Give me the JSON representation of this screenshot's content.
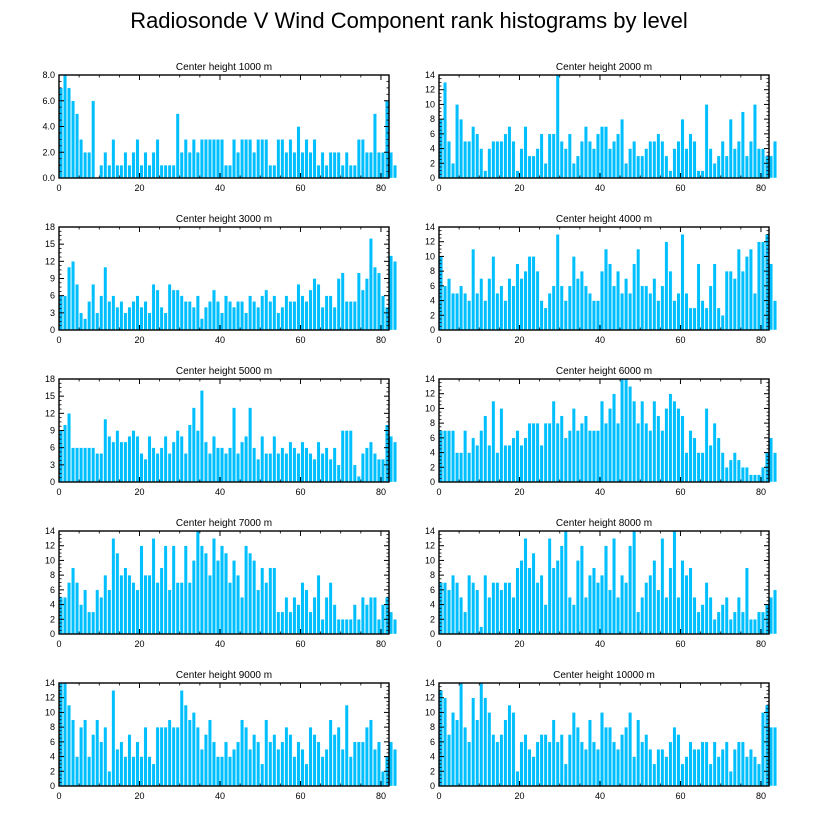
{
  "page": {
    "title": "Radiosonde V Wind Component rank histograms by level"
  },
  "colors": {
    "bar": "#00bfff",
    "barEdge": "#ffffff",
    "axis": "#000000",
    "text": "#000000"
  },
  "chart_data": [
    {
      "type": "bar",
      "title": "Center height 1000 m",
      "xlim": [
        0,
        82
      ],
      "ylim": [
        0,
        8
      ],
      "xticks": [
        {
          "v": 0,
          "label": "0"
        },
        {
          "v": 20,
          "label": "20"
        },
        {
          "v": 40,
          "label": "40"
        },
        {
          "v": 60,
          "label": "60"
        },
        {
          "v": 80,
          "label": "80"
        }
      ],
      "yticks": [
        {
          "v": 0,
          "label": "0.0"
        },
        {
          "v": 2,
          "label": "2.0"
        },
        {
          "v": 4,
          "label": "4.0"
        },
        {
          "v": 6,
          "label": "6.0"
        },
        {
          "v": 8,
          "label": "8.0"
        }
      ],
      "values": [
        7,
        8,
        7,
        6,
        5,
        3,
        2,
        2,
        6,
        0,
        1,
        2,
        1,
        3,
        1,
        1,
        2,
        1,
        2,
        3,
        1,
        2,
        1,
        2,
        3,
        1,
        1,
        1,
        1,
        5,
        2,
        3,
        2,
        3,
        2,
        3,
        3,
        3,
        3,
        3,
        3,
        1,
        1,
        3,
        2,
        3,
        3,
        3,
        2,
        3,
        3,
        3,
        1,
        1,
        3,
        3,
        2,
        3,
        2,
        4,
        2,
        3,
        2,
        3,
        1,
        2,
        1,
        2,
        2,
        2,
        1,
        2,
        1,
        1,
        3,
        3,
        2,
        2,
        5,
        2,
        2,
        6,
        2,
        1
      ]
    },
    {
      "type": "bar",
      "title": "Center height 2000 m",
      "xlim": [
        0,
        82
      ],
      "ylim": [
        0,
        14
      ],
      "xticks": [
        {
          "v": 0,
          "label": "0"
        },
        {
          "v": 20,
          "label": "20"
        },
        {
          "v": 40,
          "label": "40"
        },
        {
          "v": 60,
          "label": "60"
        },
        {
          "v": 80,
          "label": "80"
        }
      ],
      "yticks": [
        {
          "v": 0,
          "label": "0"
        },
        {
          "v": 2,
          "label": "2"
        },
        {
          "v": 4,
          "label": "4"
        },
        {
          "v": 6,
          "label": "6"
        },
        {
          "v": 8,
          "label": "8"
        },
        {
          "v": 10,
          "label": "10"
        },
        {
          "v": 12,
          "label": "12"
        },
        {
          "v": 14,
          "label": "14"
        }
      ],
      "values": [
        8,
        13,
        5,
        2,
        10,
        8,
        5,
        5,
        7,
        6,
        4,
        1,
        4,
        5,
        5,
        5,
        6,
        7,
        5,
        1,
        4,
        7,
        3,
        3,
        4,
        6,
        2,
        6,
        6,
        14,
        5,
        4,
        6,
        2,
        3,
        5,
        7,
        5,
        4,
        6,
        7,
        7,
        4,
        5,
        6,
        8,
        2,
        4,
        5,
        3,
        3,
        4,
        5,
        5,
        6,
        5,
        3,
        1,
        4,
        5,
        8,
        4,
        6,
        5,
        1,
        1,
        10,
        4,
        2,
        3,
        5,
        3,
        8,
        4,
        5,
        9,
        3,
        5,
        10,
        4,
        4,
        3,
        3,
        5
      ]
    },
    {
      "type": "bar",
      "title": "Center height 3000 m",
      "xlim": [
        0,
        82
      ],
      "ylim": [
        0,
        18
      ],
      "xticks": [
        {
          "v": 0,
          "label": "0"
        },
        {
          "v": 20,
          "label": "20"
        },
        {
          "v": 40,
          "label": "40"
        },
        {
          "v": 60,
          "label": "60"
        },
        {
          "v": 80,
          "label": "80"
        }
      ],
      "yticks": [
        {
          "v": 0,
          "label": "0"
        },
        {
          "v": 3,
          "label": "3"
        },
        {
          "v": 6,
          "label": "6"
        },
        {
          "v": 9,
          "label": "9"
        },
        {
          "v": 12,
          "label": "12"
        },
        {
          "v": 15,
          "label": "15"
        },
        {
          "v": 18,
          "label": "18"
        }
      ],
      "values": [
        6,
        6,
        11,
        12,
        8,
        3,
        2,
        5,
        8,
        3,
        6,
        11,
        5,
        6,
        4,
        5,
        3,
        4,
        5,
        6,
        4,
        5,
        3,
        8,
        7,
        4,
        3,
        8,
        7,
        7,
        6,
        5,
        5,
        4,
        6,
        2,
        4,
        5,
        7,
        5,
        3,
        6,
        5,
        4,
        5,
        5,
        3,
        6,
        5,
        4,
        6,
        7,
        5,
        6,
        3,
        4,
        6,
        5,
        5,
        8,
        6,
        5,
        7,
        9,
        8,
        4,
        6,
        6,
        4,
        9,
        10,
        5,
        5,
        5,
        10,
        7,
        9,
        16,
        11,
        10,
        6,
        4,
        13,
        12
      ]
    },
    {
      "type": "bar",
      "title": "Center height 4000 m",
      "xlim": [
        0,
        82
      ],
      "ylim": [
        0,
        14
      ],
      "xticks": [
        {
          "v": 0,
          "label": "0"
        },
        {
          "v": 20,
          "label": "20"
        },
        {
          "v": 40,
          "label": "40"
        },
        {
          "v": 60,
          "label": "60"
        },
        {
          "v": 80,
          "label": "80"
        }
      ],
      "yticks": [
        {
          "v": 0,
          "label": "0"
        },
        {
          "v": 2,
          "label": "2"
        },
        {
          "v": 4,
          "label": "4"
        },
        {
          "v": 6,
          "label": "6"
        },
        {
          "v": 8,
          "label": "8"
        },
        {
          "v": 10,
          "label": "10"
        },
        {
          "v": 12,
          "label": "12"
        },
        {
          "v": 14,
          "label": "14"
        }
      ],
      "values": [
        10,
        6,
        7,
        5,
        5,
        6,
        5,
        4,
        11,
        5,
        7,
        4,
        7,
        10,
        5,
        6,
        4,
        7,
        6,
        9,
        7,
        8,
        10,
        10,
        8,
        4,
        3,
        5,
        6,
        13,
        6,
        4,
        6,
        10,
        7,
        8,
        6,
        5,
        4,
        4,
        8,
        11,
        9,
        6,
        8,
        5,
        7,
        5,
        9,
        11,
        6,
        6,
        5,
        7,
        4,
        6,
        12,
        8,
        4,
        5,
        13,
        5,
        3,
        3,
        9,
        4,
        3,
        6,
        9,
        3,
        2,
        8,
        8,
        7,
        11,
        8,
        10,
        11,
        5,
        12,
        12,
        13,
        9,
        4
      ]
    },
    {
      "type": "bar",
      "title": "Center height 5000 m",
      "xlim": [
        0,
        82
      ],
      "ylim": [
        0,
        18
      ],
      "xticks": [
        {
          "v": 0,
          "label": "0"
        },
        {
          "v": 20,
          "label": "20"
        },
        {
          "v": 40,
          "label": "40"
        },
        {
          "v": 60,
          "label": "60"
        },
        {
          "v": 80,
          "label": "80"
        }
      ],
      "yticks": [
        {
          "v": 0,
          "label": "0"
        },
        {
          "v": 3,
          "label": "3"
        },
        {
          "v": 6,
          "label": "6"
        },
        {
          "v": 9,
          "label": "9"
        },
        {
          "v": 12,
          "label": "12"
        },
        {
          "v": 15,
          "label": "15"
        },
        {
          "v": 18,
          "label": "18"
        }
      ],
      "values": [
        9,
        10,
        12,
        6,
        6,
        6,
        6,
        6,
        6,
        5,
        5,
        11,
        8,
        7,
        9,
        7,
        7,
        8,
        9,
        8,
        5,
        4,
        8,
        6,
        5,
        6,
        8,
        5,
        7,
        9,
        8,
        5,
        10,
        13,
        9,
        16,
        7,
        5,
        8,
        6,
        6,
        5,
        6,
        13,
        5,
        7,
        8,
        13,
        6,
        4,
        8,
        5,
        5,
        8,
        5,
        6,
        5,
        7,
        6,
        5,
        7,
        6,
        5,
        4,
        7,
        5,
        6,
        4,
        6,
        3,
        9,
        9,
        9,
        3,
        1,
        5,
        6,
        7,
        5,
        4,
        4,
        10,
        8,
        7
      ]
    },
    {
      "type": "bar",
      "title": "Center height 6000 m",
      "xlim": [
        0,
        82
      ],
      "ylim": [
        0,
        14
      ],
      "xticks": [
        {
          "v": 0,
          "label": "0"
        },
        {
          "v": 20,
          "label": "20"
        },
        {
          "v": 40,
          "label": "40"
        },
        {
          "v": 60,
          "label": "60"
        },
        {
          "v": 80,
          "label": "80"
        }
      ],
      "yticks": [
        {
          "v": 0,
          "label": "0"
        },
        {
          "v": 2,
          "label": "2"
        },
        {
          "v": 4,
          "label": "4"
        },
        {
          "v": 6,
          "label": "6"
        },
        {
          "v": 8,
          "label": "8"
        },
        {
          "v": 10,
          "label": "10"
        },
        {
          "v": 12,
          "label": "12"
        },
        {
          "v": 14,
          "label": "14"
        }
      ],
      "values": [
        7,
        7,
        7,
        7,
        4,
        4,
        7,
        4,
        6,
        5,
        7,
        9,
        5,
        11,
        4,
        10,
        5,
        5,
        6,
        7,
        5,
        6,
        8,
        8,
        8,
        5,
        8,
        8,
        11,
        8,
        9,
        6,
        7,
        10,
        7,
        8,
        9,
        7,
        7,
        7,
        11,
        8,
        10,
        12,
        8,
        14,
        14,
        13,
        11,
        8,
        11,
        8,
        7,
        11,
        9,
        7,
        10,
        12,
        11,
        10,
        9,
        4,
        7,
        6,
        4,
        4,
        10,
        5,
        8,
        6,
        4,
        2,
        3,
        4,
        3,
        2,
        2,
        1,
        1,
        1,
        2,
        4,
        6,
        4
      ]
    },
    {
      "type": "bar",
      "title": "Center height 7000 m",
      "xlim": [
        0,
        82
      ],
      "ylim": [
        0,
        14
      ],
      "xticks": [
        {
          "v": 0,
          "label": "0"
        },
        {
          "v": 20,
          "label": "20"
        },
        {
          "v": 40,
          "label": "40"
        },
        {
          "v": 60,
          "label": "60"
        },
        {
          "v": 80,
          "label": "80"
        }
      ],
      "yticks": [
        {
          "v": 0,
          "label": "0"
        },
        {
          "v": 2,
          "label": "2"
        },
        {
          "v": 4,
          "label": "4"
        },
        {
          "v": 6,
          "label": "6"
        },
        {
          "v": 8,
          "label": "8"
        },
        {
          "v": 10,
          "label": "10"
        },
        {
          "v": 12,
          "label": "12"
        },
        {
          "v": 14,
          "label": "14"
        }
      ],
      "values": [
        5,
        5,
        7,
        9,
        7,
        4,
        6,
        3,
        3,
        6,
        5,
        8,
        6,
        13,
        11,
        8,
        9,
        8,
        7,
        6,
        12,
        8,
        8,
        13,
        7,
        9,
        12,
        6,
        12,
        7,
        7,
        12,
        7,
        10,
        14,
        12,
        11,
        8,
        13,
        10,
        12,
        11,
        7,
        10,
        8,
        5,
        12,
        11,
        10,
        6,
        9,
        7,
        9,
        9,
        3,
        3,
        5,
        3,
        5,
        4,
        7,
        6,
        3,
        5,
        8,
        2,
        5,
        7,
        4,
        2,
        2,
        2,
        2,
        4,
        2,
        5,
        4,
        5,
        5,
        2,
        4,
        5,
        3,
        2
      ]
    },
    {
      "type": "bar",
      "title": "Center height 8000 m",
      "xlim": [
        0,
        82
      ],
      "ylim": [
        0,
        14
      ],
      "xticks": [
        {
          "v": 0,
          "label": "0"
        },
        {
          "v": 20,
          "label": "20"
        },
        {
          "v": 40,
          "label": "40"
        },
        {
          "v": 60,
          "label": "60"
        },
        {
          "v": 80,
          "label": "80"
        }
      ],
      "yticks": [
        {
          "v": 0,
          "label": "0"
        },
        {
          "v": 2,
          "label": "2"
        },
        {
          "v": 4,
          "label": "4"
        },
        {
          "v": 6,
          "label": "6"
        },
        {
          "v": 8,
          "label": "8"
        },
        {
          "v": 10,
          "label": "10"
        },
        {
          "v": 12,
          "label": "12"
        },
        {
          "v": 14,
          "label": "14"
        }
      ],
      "values": [
        7,
        7,
        6,
        8,
        7,
        5,
        3,
        8,
        7,
        6,
        1,
        8,
        5,
        7,
        7,
        6,
        7,
        7,
        5,
        9,
        10,
        13,
        9,
        11,
        7,
        8,
        4,
        13,
        9,
        10,
        12,
        14,
        5,
        4,
        10,
        12,
        5,
        8,
        9,
        7,
        8,
        12,
        6,
        13,
        5,
        8,
        7,
        12,
        14,
        3,
        5,
        7,
        8,
        10,
        6,
        13,
        5,
        9,
        14,
        5,
        10,
        8,
        9,
        5,
        3,
        4,
        7,
        5,
        2,
        3,
        4,
        5,
        2,
        3,
        5,
        3,
        9,
        2,
        2,
        3,
        3,
        4,
        5,
        6
      ]
    },
    {
      "type": "bar",
      "title": "Center height 9000 m",
      "xlim": [
        0,
        82
      ],
      "ylim": [
        0,
        14
      ],
      "xticks": [
        {
          "v": 0,
          "label": "0"
        },
        {
          "v": 20,
          "label": "20"
        },
        {
          "v": 40,
          "label": "40"
        },
        {
          "v": 60,
          "label": "60"
        },
        {
          "v": 80,
          "label": "80"
        }
      ],
      "yticks": [
        {
          "v": 0,
          "label": "0"
        },
        {
          "v": 2,
          "label": "2"
        },
        {
          "v": 4,
          "label": "4"
        },
        {
          "v": 6,
          "label": "6"
        },
        {
          "v": 8,
          "label": "8"
        },
        {
          "v": 10,
          "label": "10"
        },
        {
          "v": 12,
          "label": "12"
        },
        {
          "v": 14,
          "label": "14"
        }
      ],
      "values": [
        14,
        14,
        11,
        9,
        4,
        8,
        9,
        4,
        7,
        9,
        6,
        8,
        2,
        13,
        5,
        6,
        4,
        7,
        4,
        6,
        4,
        8,
        4,
        3,
        8,
        8,
        8,
        9,
        8,
        8,
        13,
        11,
        9,
        10,
        8,
        5,
        7,
        9,
        6,
        4,
        4,
        6,
        4,
        5,
        6,
        9,
        8,
        5,
        7,
        6,
        3,
        9,
        6,
        7,
        5,
        6,
        8,
        7,
        4,
        6,
        5,
        3,
        8,
        7,
        6,
        4,
        5,
        9,
        7,
        8,
        5,
        11,
        4,
        6,
        6,
        6,
        8,
        9,
        5,
        6,
        2,
        4,
        6,
        5
      ]
    },
    {
      "type": "bar",
      "title": "Center height 10000 m",
      "xlim": [
        0,
        82
      ],
      "ylim": [
        0,
        14
      ],
      "xticks": [
        {
          "v": 0,
          "label": "0"
        },
        {
          "v": 20,
          "label": "20"
        },
        {
          "v": 40,
          "label": "40"
        },
        {
          "v": 60,
          "label": "60"
        },
        {
          "v": 80,
          "label": "80"
        }
      ],
      "yticks": [
        {
          "v": 0,
          "label": "0"
        },
        {
          "v": 2,
          "label": "2"
        },
        {
          "v": 4,
          "label": "4"
        },
        {
          "v": 6,
          "label": "6"
        },
        {
          "v": 8,
          "label": "8"
        },
        {
          "v": 10,
          "label": "10"
        },
        {
          "v": 12,
          "label": "12"
        },
        {
          "v": 14,
          "label": "14"
        }
      ],
      "values": [
        13,
        12,
        7,
        10,
        9,
        14,
        8,
        6,
        12,
        9,
        14,
        12,
        10,
        7,
        6,
        7,
        9,
        11,
        10,
        2,
        6,
        7,
        5,
        4,
        6,
        7,
        7,
        6,
        9,
        6,
        7,
        3,
        7,
        10,
        8,
        6,
        5,
        9,
        6,
        5,
        10,
        8,
        8,
        6,
        5,
        7,
        8,
        10,
        4,
        9,
        6,
        7,
        5,
        3,
        5,
        5,
        4,
        6,
        8,
        7,
        3,
        4,
        6,
        5,
        5,
        6,
        6,
        3,
        6,
        4,
        5,
        6,
        2,
        5,
        6,
        6,
        4,
        5,
        4,
        3,
        10,
        11,
        8,
        8
      ]
    }
  ]
}
